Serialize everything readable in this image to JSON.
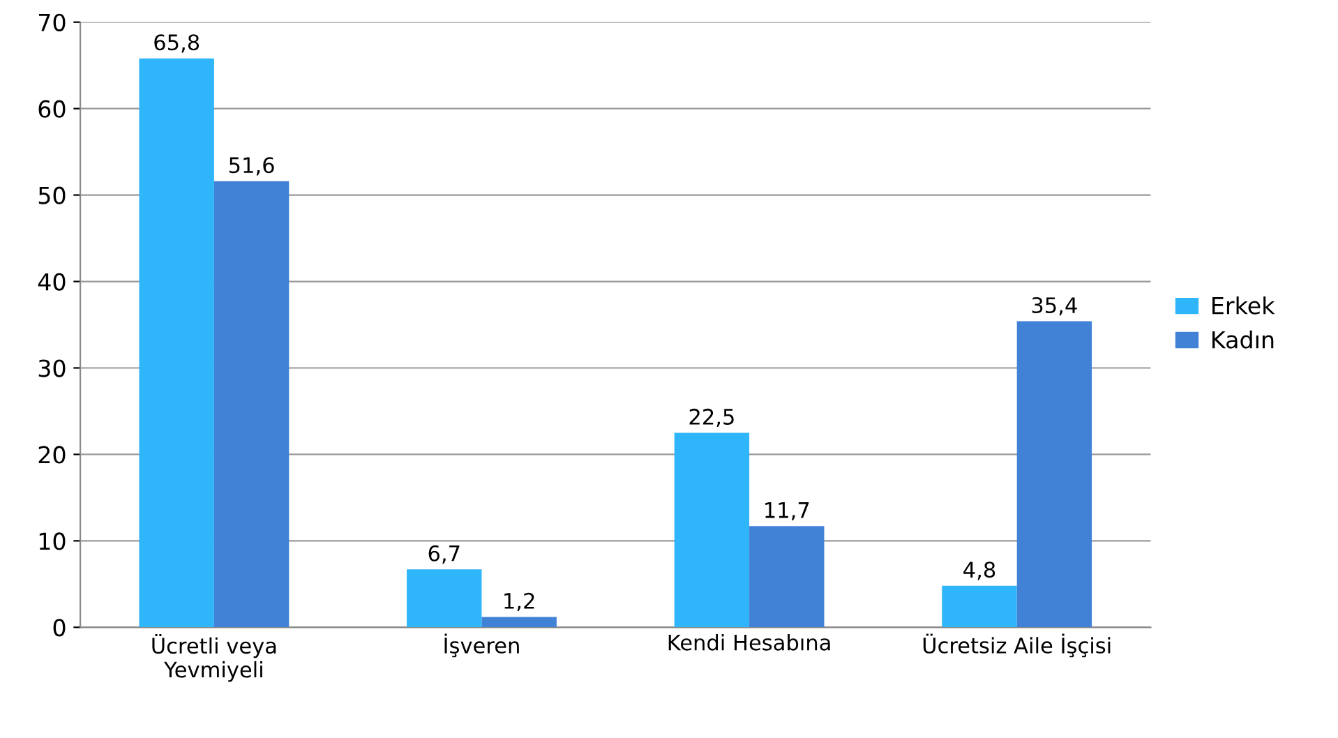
{
  "chart_data": {
    "type": "bar",
    "categories": [
      "Ücretli veya\nYevmiyeli",
      "İşveren",
      "Kendi Hesabına",
      "Ücretsiz Aile İşçisi"
    ],
    "series": [
      {
        "name": "Erkek",
        "color": "#2fb6fa",
        "values": [
          65.8,
          6.7,
          22.5,
          4.8
        ],
        "value_labels": [
          "65,8",
          "6,7",
          "22,5",
          "4,8"
        ]
      },
      {
        "name": "Kadın",
        "color": "#4182d6",
        "values": [
          51.6,
          1.2,
          11.7,
          35.4
        ],
        "value_labels": [
          "51,6",
          "1,2",
          "11,7",
          "35,4"
        ]
      }
    ],
    "ylim": [
      0,
      70
    ],
    "yticks": [
      0,
      10,
      20,
      30,
      40,
      50,
      60,
      70
    ],
    "grid": "y",
    "legend": "right"
  }
}
